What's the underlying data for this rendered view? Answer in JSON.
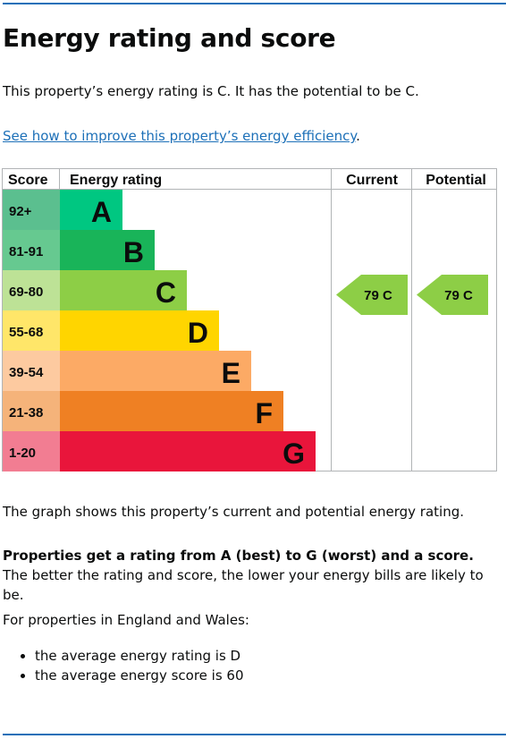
{
  "heading": "Energy rating and score",
  "intro": "This property’s energy rating is C. It has the potential to be C.",
  "link": {
    "text": "See how to improve this property’s energy efficiency",
    "suffix": "."
  },
  "chart_data": {
    "type": "table",
    "headers": {
      "score": "Score",
      "rating": "Energy rating",
      "current": "Current",
      "potential": "Potential"
    },
    "bands": [
      {
        "range": "92+",
        "letter": "A",
        "color": "#008054",
        "range_bg": "#5bbf8f",
        "bar_color": "#00c781",
        "level": 1
      },
      {
        "range": "81-91",
        "letter": "B",
        "color": "#19b459",
        "range_bg": "#66c990",
        "bar_color": "#19b459",
        "level": 2
      },
      {
        "range": "69-80",
        "letter": "C",
        "color": "#8dce46",
        "range_bg": "#bde296",
        "bar_color": "#8dce46",
        "level": 3
      },
      {
        "range": "55-68",
        "letter": "D",
        "color": "#ffd500",
        "range_bg": "#ffe669",
        "bar_color": "#ffd500",
        "level": 4
      },
      {
        "range": "39-54",
        "letter": "E",
        "color": "#fcaa65",
        "range_bg": "#fdcaa0",
        "bar_color": "#fcaa65",
        "level": 5
      },
      {
        "range": "21-38",
        "letter": "F",
        "color": "#ef8023",
        "range_bg": "#f5b37a",
        "bar_color": "#ef8023",
        "level": 6
      },
      {
        "range": "1-20",
        "letter": "G",
        "color": "#e9153b",
        "range_bg": "#f27d92",
        "bar_color": "#e9153b",
        "level": 7
      }
    ],
    "current": {
      "score": 79,
      "letter": "C",
      "label": "79  C",
      "color": "#8dce46"
    },
    "potential": {
      "score": 79,
      "letter": "C",
      "label": "79  C",
      "color": "#8dce46"
    }
  },
  "graph_description": "The graph shows this property’s current and potential energy rating.",
  "rating_info": {
    "bold": "Properties get a rating from A (best) to G (worst) and a score.",
    "rest": " The better the rating and score, the lower your energy bills are likely to be."
  },
  "england_wales": {
    "lead": "For properties in England and Wales:",
    "items": [
      "the average energy rating is D",
      "the average energy score is 60"
    ]
  }
}
